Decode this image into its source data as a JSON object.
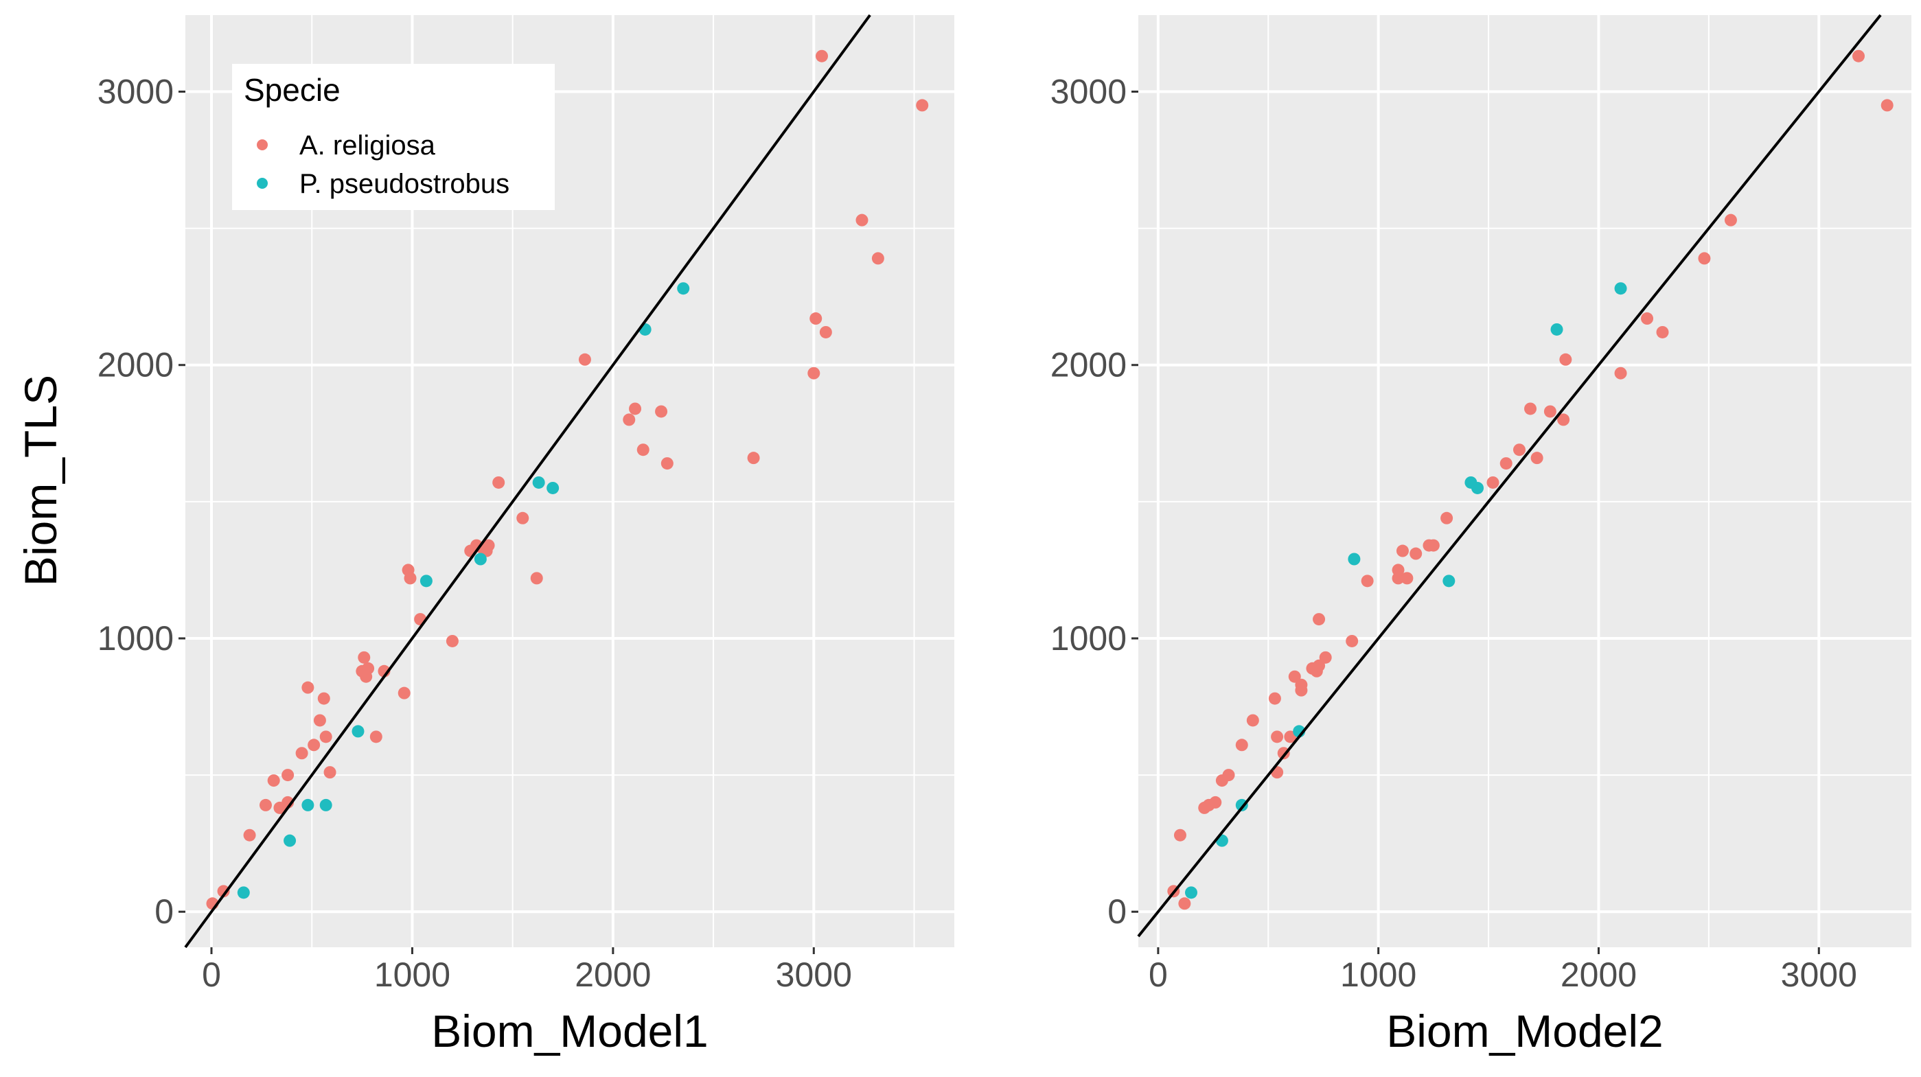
{
  "figure": {
    "y_axis_label": "Biom_TLS",
    "legend_title": "Specie",
    "legend_entries": [
      {
        "label": "A. religiosa",
        "color": "#F07B73"
      },
      {
        "label": "P. pseudostrobus",
        "color": "#1FBCC0"
      }
    ],
    "panel_bg": "#EBEBEB",
    "grid_color": "#FFFFFF",
    "line_color": "#000000"
  },
  "chart_data": [
    {
      "type": "scatter",
      "xlabel": "Biom_Model1",
      "ylabel": "Biom_TLS",
      "xlim": [
        -130,
        3700
      ],
      "ylim": [
        -130,
        3280
      ],
      "xticks": [
        "0",
        "1000",
        "2000",
        "3000"
      ],
      "yticks": [
        "0",
        "1000",
        "2000",
        "3000"
      ],
      "reference_line": {
        "slope": 1.0,
        "intercept": 0
      },
      "series": [
        {
          "name": "A. religiosa",
          "points": [
            [
              5,
              30
            ],
            [
              60,
              75
            ],
            [
              190,
              280
            ],
            [
              270,
              390
            ],
            [
              310,
              480
            ],
            [
              340,
              380
            ],
            [
              380,
              400
            ],
            [
              380,
              500
            ],
            [
              450,
              580
            ],
            [
              480,
              820
            ],
            [
              510,
              610
            ],
            [
              540,
              700
            ],
            [
              560,
              780
            ],
            [
              570,
              640
            ],
            [
              590,
              510
            ],
            [
              750,
              880
            ],
            [
              760,
              930
            ],
            [
              770,
              860
            ],
            [
              780,
              890
            ],
            [
              820,
              640
            ],
            [
              860,
              880
            ],
            [
              960,
              800
            ],
            [
              980,
              1250
            ],
            [
              990,
              1220
            ],
            [
              1040,
              1070
            ],
            [
              1200,
              990
            ],
            [
              1290,
              1320
            ],
            [
              1320,
              1340
            ],
            [
              1350,
              1330
            ],
            [
              1370,
              1320
            ],
            [
              1380,
              1340
            ],
            [
              1430,
              1570
            ],
            [
              1550,
              1440
            ],
            [
              1620,
              1220
            ],
            [
              1860,
              2020
            ],
            [
              2080,
              1800
            ],
            [
              2110,
              1840
            ],
            [
              2150,
              1690
            ],
            [
              2240,
              1830
            ],
            [
              2270,
              1640
            ],
            [
              2700,
              1660
            ],
            [
              3000,
              1970
            ],
            [
              3010,
              2170
            ],
            [
              3040,
              3130
            ],
            [
              3060,
              2120
            ],
            [
              3240,
              2530
            ],
            [
              3320,
              2390
            ],
            [
              3540,
              2950
            ]
          ]
        },
        {
          "name": "P. pseudostrobus",
          "points": [
            [
              160,
              70
            ],
            [
              390,
              260
            ],
            [
              480,
              390
            ],
            [
              570,
              390
            ],
            [
              730,
              660
            ],
            [
              1070,
              1210
            ],
            [
              1340,
              1290
            ],
            [
              1630,
              1570
            ],
            [
              1700,
              1550
            ],
            [
              2160,
              2130
            ],
            [
              2350,
              2280
            ]
          ]
        }
      ]
    },
    {
      "type": "scatter",
      "xlabel": "Biom_Model2",
      "ylabel": "Biom_TLS",
      "xlim": [
        -90,
        3420
      ],
      "ylim": [
        -130,
        3280
      ],
      "xticks": [
        "0",
        "1000",
        "2000",
        "3000"
      ],
      "yticks": [
        "0",
        "1000",
        "2000",
        "3000"
      ],
      "reference_line": {
        "slope": 1.0,
        "intercept": 0
      },
      "series": [
        {
          "name": "A. religiosa",
          "points": [
            [
              70,
              75
            ],
            [
              100,
              280
            ],
            [
              120,
              30
            ],
            [
              210,
              380
            ],
            [
              230,
              390
            ],
            [
              260,
              400
            ],
            [
              290,
              480
            ],
            [
              320,
              500
            ],
            [
              380,
              610
            ],
            [
              430,
              700
            ],
            [
              530,
              780
            ],
            [
              540,
              640
            ],
            [
              540,
              510
            ],
            [
              570,
              580
            ],
            [
              600,
              640
            ],
            [
              620,
              860
            ],
            [
              650,
              830
            ],
            [
              650,
              810
            ],
            [
              700,
              890
            ],
            [
              720,
              880
            ],
            [
              730,
              1070
            ],
            [
              730,
              900
            ],
            [
              760,
              930
            ],
            [
              880,
              990
            ],
            [
              950,
              1210
            ],
            [
              1090,
              1220
            ],
            [
              1090,
              1250
            ],
            [
              1110,
              1320
            ],
            [
              1130,
              1220
            ],
            [
              1170,
              1310
            ],
            [
              1230,
              1340
            ],
            [
              1250,
              1340
            ],
            [
              1310,
              1440
            ],
            [
              1520,
              1570
            ],
            [
              1580,
              1640
            ],
            [
              1640,
              1690
            ],
            [
              1690,
              1840
            ],
            [
              1720,
              1660
            ],
            [
              1780,
              1830
            ],
            [
              1840,
              1800
            ],
            [
              1850,
              2020
            ],
            [
              2100,
              1970
            ],
            [
              2220,
              2170
            ],
            [
              2290,
              2120
            ],
            [
              2480,
              2390
            ],
            [
              2600,
              2530
            ],
            [
              3180,
              3130
            ],
            [
              3310,
              2950
            ]
          ]
        },
        {
          "name": "P. pseudostrobus",
          "points": [
            [
              150,
              70
            ],
            [
              290,
              260
            ],
            [
              380,
              390
            ],
            [
              640,
              660
            ],
            [
              890,
              1290
            ],
            [
              1320,
              1210
            ],
            [
              1420,
              1570
            ],
            [
              1450,
              1550
            ],
            [
              1810,
              2130
            ],
            [
              2100,
              2280
            ]
          ]
        }
      ]
    }
  ]
}
